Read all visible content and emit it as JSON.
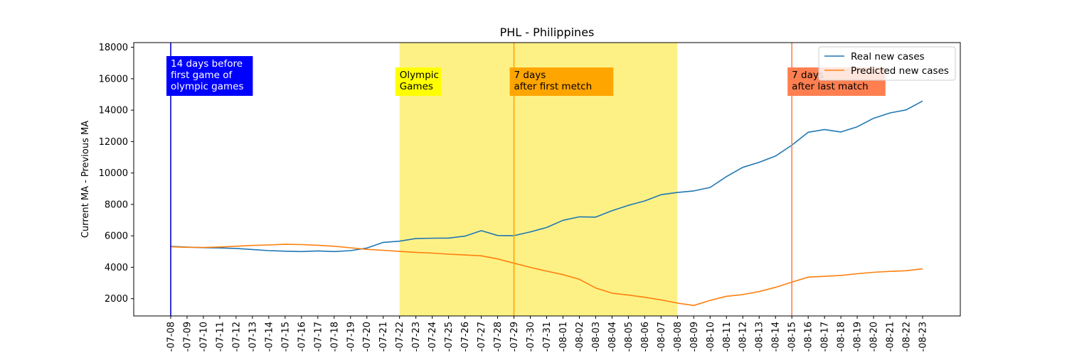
{
  "chart_data": {
    "type": "line",
    "title": "PHL - Philippines",
    "xlabel": "",
    "ylabel": "Current MA - Previous MA",
    "ylim": [
      900,
      18300
    ],
    "yticks": [
      2000,
      4000,
      6000,
      8000,
      10000,
      12000,
      14000,
      16000,
      18000
    ],
    "categories": [
      "07-08",
      "07-09",
      "07-10",
      "07-11",
      "07-12",
      "07-13",
      "07-14",
      "07-15",
      "07-16",
      "07-17",
      "07-18",
      "07-19",
      "07-20",
      "07-21",
      "07-22",
      "07-23",
      "07-24",
      "07-25",
      "07-26",
      "07-27",
      "07-28",
      "07-29",
      "07-30",
      "07-31",
      "08-01",
      "08-02",
      "08-03",
      "08-04",
      "08-05",
      "08-06",
      "08-07",
      "08-08",
      "08-09",
      "08-10",
      "08-11",
      "08-12",
      "08-13",
      "08-14",
      "08-15",
      "08-16",
      "08-17",
      "08-18",
      "08-19",
      "08-20",
      "08-21",
      "08-22",
      "08-23"
    ],
    "tick_labels": [
      "-07-08",
      "-07-09",
      "-07-10",
      "-07-11",
      "-07-12",
      "-07-13",
      "-07-14",
      "-07-15",
      "-07-16",
      "-07-17",
      "-07-18",
      "-07-19",
      "-07-20",
      "-07-21",
      "-07-22",
      "-07-23",
      "-07-24",
      "-07-25",
      "-07-26",
      "-07-27",
      "-07-28",
      "-07-29",
      "-07-30",
      "-07-31",
      "-08-01",
      "-08-02",
      "-08-03",
      "-08-04",
      "-08-05",
      "-08-06",
      "-08-07",
      "-08-08",
      "-08-09",
      "-08-10",
      "-08-11",
      "-08-12",
      "-08-13",
      "-08-14",
      "-08-15",
      "-08-16",
      "-08-17",
      "-08-18",
      "-08-19",
      "-08-20",
      "-08-21",
      "-08-22",
      "-08-23"
    ],
    "series": [
      {
        "name": "Real new cases",
        "color": "#1f77b4",
        "values": [
          5330,
          5280,
          5250,
          5230,
          5200,
          5130,
          5060,
          5020,
          5000,
          5040,
          5000,
          5060,
          5220,
          5580,
          5660,
          5830,
          5850,
          5860,
          5980,
          6330,
          6020,
          6010,
          6250,
          6530,
          6990,
          7210,
          7190,
          7600,
          7940,
          8220,
          8620,
          8760,
          8860,
          9080,
          9770,
          10360,
          10680,
          11080,
          11770,
          12590,
          12770,
          12610,
          12940,
          13480,
          13820,
          14020,
          14580
        ]
      },
      {
        "name": "Predicted new cases",
        "color": "#ff7f0e",
        "values": [
          5300,
          5270,
          5260,
          5290,
          5340,
          5390,
          5420,
          5460,
          5440,
          5400,
          5340,
          5240,
          5140,
          5080,
          5010,
          4950,
          4900,
          4830,
          4780,
          4730,
          4530,
          4260,
          3990,
          3750,
          3530,
          3230,
          2680,
          2350,
          2230,
          2090,
          1920,
          1720,
          1570,
          1890,
          2150,
          2260,
          2450,
          2720,
          3050,
          3370,
          3420,
          3480,
          3590,
          3680,
          3740,
          3780,
          3900
        ]
      }
    ],
    "shaded_region": {
      "start": "07-22",
      "end": "08-08",
      "color": "#fdf080"
    },
    "vlines": [
      {
        "at": "07-08",
        "color": "#0000cc"
      },
      {
        "at": "07-29",
        "color": "#ffa500"
      },
      {
        "at": "08-15",
        "color": "#ff7f50"
      }
    ],
    "annotations": [
      {
        "lines": [
          "14 days before",
          "first game of",
          "olympic games"
        ],
        "at": "07-08",
        "bg": "#0000ff",
        "fg": "#ffffff",
        "y": 16400
      },
      {
        "lines": [
          "Olympic",
          "Games"
        ],
        "at": "07-22",
        "bg": "#ffff00",
        "fg": "#000000",
        "y": 16400
      },
      {
        "lines": [
          "7 days",
          "after first metch"
        ],
        "at": "07-29",
        "bg": "#ffa500",
        "fg": "#000000",
        "y": 16400
      },
      {
        "lines": [
          "7 days",
          "after last match"
        ],
        "at": "08-15",
        "bg": "#ff7f50",
        "fg": "#000000",
        "y": 16400
      }
    ],
    "legend": {
      "position": "top-right"
    },
    "grid": false
  }
}
